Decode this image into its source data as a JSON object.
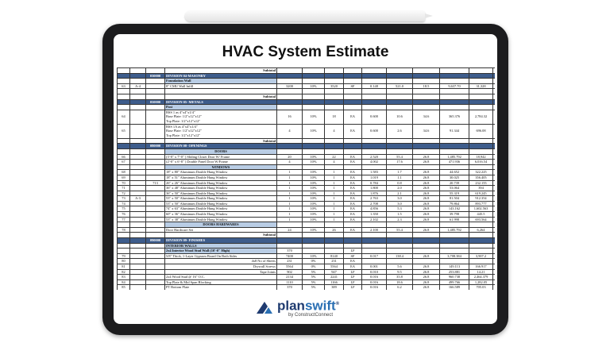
{
  "title": "HVAC System Estimate",
  "logo": {
    "brand_a": "plan",
    "brand_b": "swift",
    "registered": "®",
    "byline": "by ConstructConnect"
  },
  "colors": {
    "division_header": "#3e5d8c",
    "section_header": "#b9cde5",
    "brand_blue": "#1f3b70"
  },
  "rows": [
    {
      "type": "subtotal",
      "label": "Subtotal"
    },
    {
      "type": "division",
      "code": "030000",
      "label": "DIVISION 04-MASONRY"
    },
    {
      "type": "section",
      "label": "Foundation Wall"
    },
    {
      "type": "item",
      "cells": [
        "63",
        "A-4",
        "",
        "8\" CMU Wall Infill",
        "3200",
        "10%",
        "3520",
        "SF",
        "0.148",
        "521.0",
        "18.5",
        "9,637.70",
        "31,328"
      ]
    },
    {
      "type": "blank"
    },
    {
      "type": "subtotal",
      "label": "Subtotal"
    },
    {
      "type": "division",
      "code": "050000",
      "label": "DIVISION 05- METALS"
    },
    {
      "type": "section",
      "label": "Post"
    },
    {
      "type": "tall",
      "cells": [
        "64",
        "",
        "",
        "BSS 1 as 4\"x4\"x1/4\" | Base Plate: 1/2\"x12\"x12\" | Top Plate: 1/2\"x12\"x12\"",
        "16",
        "10%",
        "18",
        "EA",
        "0.600",
        "10.6",
        "34.6",
        "365.376",
        "2,784.32"
      ]
    },
    {
      "type": "tall",
      "cells": [
        "65",
        "",
        "",
        "BSS 1A as 4\"x4\"x1/4\" | Base Plate: 1/2\"x12\"x12\" | Top Plate: 1/2\"x12\"x12\"",
        "4",
        "10%",
        "4",
        "EA",
        "0.600",
        "2.6",
        "34.6",
        "91.344",
        "696.08"
      ]
    },
    {
      "type": "subtotal",
      "label": "Subtotal"
    },
    {
      "type": "division",
      "code": "080000",
      "label": "DIVISION 08- OPENINGS"
    },
    {
      "type": "center",
      "label": "DOORS"
    },
    {
      "type": "item",
      "cells": [
        "66",
        "",
        "",
        "(3'-0\" x 7'-0\" ) Sliding Closet Door W/ Frame",
        "20",
        "10%",
        "22",
        "EA",
        "2.520",
        "55.4",
        "26.8",
        "1,485.792",
        "18,942"
      ]
    },
    {
      "type": "item",
      "cells": [
        "67",
        "",
        "",
        "(2'-0\" x 6'-8\" ) Double Panel Door W/Frame",
        "4",
        "10%",
        "4",
        "EA",
        "4.002",
        "17.6",
        "26.8",
        "471.936",
        "6,016.54"
      ]
    },
    {
      "type": "center",
      "label": "WINDOWS"
    },
    {
      "type": "item",
      "cells": [
        "68",
        "",
        "",
        "18\" x 80\" Aluminum Double Hung Window",
        "1",
        "10%",
        "1",
        "EA",
        "1.583",
        "1.7",
        "26.8",
        "44.652",
        "322.225"
      ]
    },
    {
      "type": "item",
      "cells": [
        "69",
        "",
        "",
        "18\" x 51\" Aluminum Double Hung Window",
        "1",
        "10%",
        "1",
        "EA",
        "1.019",
        "1.1",
        "26.8",
        "30.025",
        "356.405"
      ]
    },
    {
      "type": "item",
      "cells": [
        "70",
        "",
        "713",
        "26\" x 26\" Aluminum Double Hung Window",
        "1",
        "10%",
        "1",
        "EA",
        "0.784",
        "0.8",
        "26.8",
        "20.739",
        "232.155"
      ]
    },
    {
      "type": "item",
      "cells": [
        "71",
        "",
        "",
        "36\" x 48\" Aluminum Double Hung Window",
        "1",
        "10%",
        "1",
        "EA",
        "1.800",
        "2.0",
        "26.8",
        "53.064",
        "394"
      ]
    },
    {
      "type": "item",
      "cells": [
        "72",
        "",
        "",
        "36\" x 50\" Aluminum Double Hung Window",
        "1",
        "10%",
        "1",
        "EA",
        "1.876",
        "2.1",
        "26.8",
        "55.319",
        "619.245"
      ]
    },
    {
      "type": "item",
      "cells": [
        "73",
        "A-3",
        "",
        "53\" x 50\" Aluminum Double Hung Window",
        "1",
        "10%",
        "1",
        "EA",
        "2.763",
        "3.0",
        "26.8",
        "81.504",
        "912.354"
      ]
    },
    {
      "type": "item",
      "cells": [
        "74",
        "",
        "",
        "53\" x 50\" Aluminum Double Hung Window",
        "1",
        "10%",
        "1",
        "EA",
        "2.708",
        "3.0",
        "26.8",
        "79.864",
        "893.777"
      ]
    },
    {
      "type": "item",
      "cells": [
        "75",
        "",
        "",
        "74\" x 63\" Aluminum Double Hung Window",
        "1",
        "10%",
        "1",
        "EA",
        "4.856",
        "5.3",
        "26.8",
        "143.162",
        "1,602.563"
      ]
    },
    {
      "type": "item",
      "cells": [
        "76",
        "",
        "",
        "60\" x 36\" Aluminum Double Hung Window",
        "1",
        "10%",
        "1",
        "EA",
        "1.350",
        "1.5",
        "26.8",
        "39.798",
        "445.5"
      ]
    },
    {
      "type": "item",
      "cells": [
        "77",
        "",
        "",
        "53\" x 38\" Aluminum Double Hung Window",
        "1",
        "10%",
        "1",
        "EA",
        "2.102",
        "2.3",
        "26.8",
        "61.998",
        "693.564"
      ]
    },
    {
      "type": "center",
      "label": "DOORS HARDWARES"
    },
    {
      "type": "item",
      "cells": [
        "78",
        "",
        "",
        "Door Hardware Set",
        "24",
        "10%",
        "26",
        "EA",
        "2.100",
        "55.4",
        "26.8",
        "1,485.792",
        "6,264"
      ]
    },
    {
      "type": "subtotal",
      "label": "Subtotal"
    },
    {
      "type": "division",
      "code": "090000",
      "label": "DIVISION 09- FINISHES"
    },
    {
      "type": "section",
      "label": "INTERIOR WALLS"
    },
    {
      "type": "section",
      "label": "2x4 Interior Wood Stud Wall (10'-0\" High)",
      "qty": "370",
      "unit": "LF"
    },
    {
      "type": "item",
      "cells": [
        "79",
        "",
        "",
        "5/8\" Thick, 1-Layer Gypsum Board On Both Sides",
        "7400",
        "10%",
        "8140",
        "SF",
        "0.017",
        "138.4",
        "26.8",
        "3,708.384",
        "3,907.2"
      ]
    },
    {
      "type": "item",
      "right": true,
      "cells": [
        "80",
        "",
        "",
        "4x8 No of Sheets",
        "231",
        "0%",
        "231",
        "EA",
        "",
        "",
        "",
        "",
        ""
      ]
    },
    {
      "type": "item",
      "right": true,
      "cells": [
        "81",
        "",
        "",
        "Drywall Screws",
        "5564",
        "0%",
        "5564",
        "EA",
        "0.001",
        "5.6",
        "26.8",
        "149.113",
        "166.917"
      ]
    },
    {
      "type": "item",
      "right": true,
      "cells": [
        "82",
        "",
        "",
        "Tape Joints",
        "902",
        "5%",
        "947",
        "LF",
        "0.010",
        "9.5",
        "26.8",
        "253.881",
        "14.21"
      ]
    },
    {
      "type": "item",
      "cells": [
        "83",
        "",
        "",
        "2x4 Wood Stud @ 16\" O.C.",
        "2134",
        "5%",
        "2241",
        "LF",
        "0.016",
        "35.8",
        "26.8",
        "960.738",
        "2,464.379"
      ]
    },
    {
      "type": "item",
      "cells": [
        "84",
        "",
        "",
        "Top Plate & Mid Span Blocking",
        "1110",
        "5%",
        "1166",
        "LF",
        "0.016",
        "18.6",
        "26.8",
        "499.766",
        "1,282.05"
      ]
    },
    {
      "type": "item",
      "cells": [
        "85",
        "",
        "",
        "PT Bottom Plate",
        "370",
        "5%",
        "389",
        "LF",
        "0.016",
        "6.2",
        "26.8",
        "166.589",
        "705.03"
      ]
    }
  ]
}
